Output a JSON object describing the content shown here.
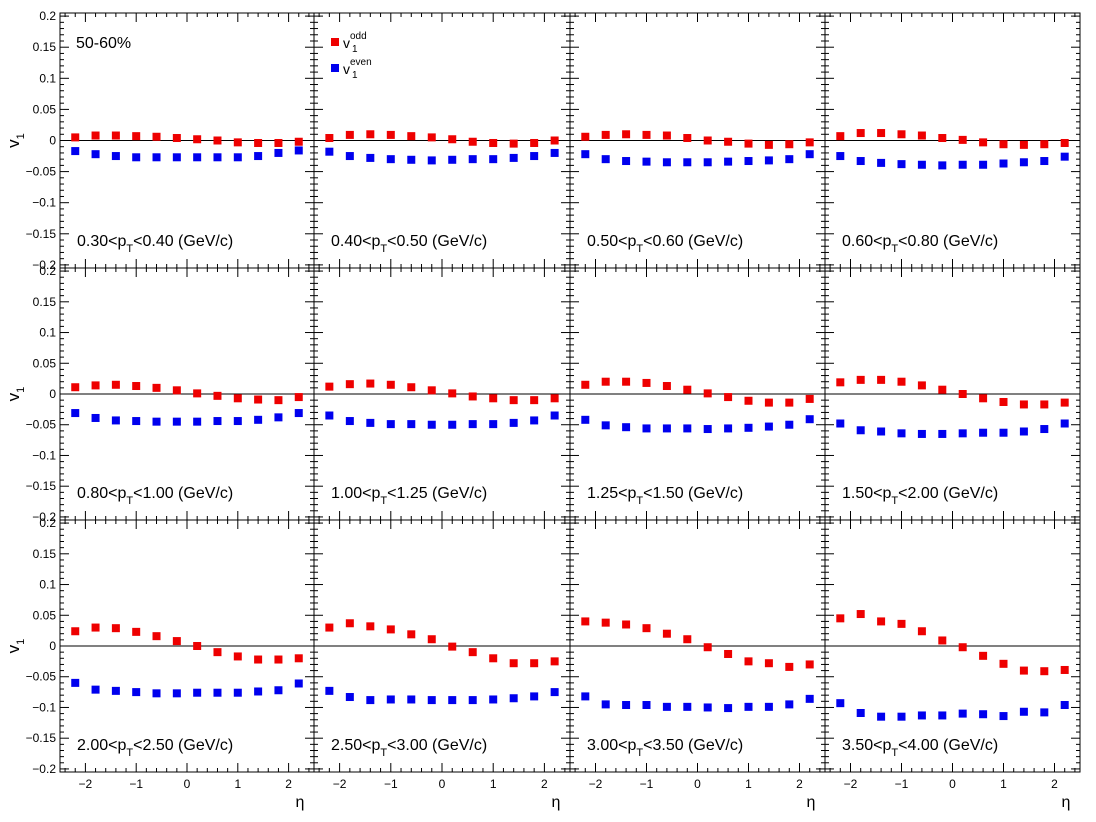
{
  "figure": {
    "centrality_label": "50-60%",
    "ylabel": "v",
    "ylabel_sub": "1",
    "xlabel": "η",
    "legend": [
      {
        "base": "v",
        "sub": "1",
        "sup": "odd",
        "color": "#ee0000"
      },
      {
        "base": "v",
        "sub": "1",
        "sup": "even",
        "color": "#0000ee"
      }
    ],
    "ytick_labels": [
      "0.2",
      "0.15",
      "0.1",
      "0.05",
      "0",
      "−0.05",
      "−0.1",
      "−0.15",
      "−0.2"
    ],
    "xtick_labels": [
      "−2",
      "−1",
      "0",
      "1",
      "2"
    ],
    "colors": {
      "odd": "#ee0000",
      "even": "#0000ee",
      "axis": "#000000"
    }
  },
  "chart_data": {
    "type": "scatter",
    "layout": "grid 3 rows x 4 columns",
    "xlabel": "η",
    "ylabel": "v1",
    "xlim": [
      -2.5,
      2.5
    ],
    "ylim": [
      -0.205,
      0.205
    ],
    "x": [
      -2.2,
      -1.8,
      -1.4,
      -1.0,
      -0.6,
      -0.2,
      0.2,
      0.6,
      1.0,
      1.4,
      1.8,
      2.2
    ],
    "series_names": [
      "v1 odd",
      "v1 even"
    ],
    "panels": [
      {
        "label": "0.30<pT<0.40 (GeV/c)",
        "p_lo": "0.30",
        "p_hi": "0.40",
        "odd": [
          0.005,
          0.008,
          0.008,
          0.007,
          0.006,
          0.004,
          0.002,
          0.0,
          -0.003,
          -0.004,
          -0.004,
          -0.002
        ],
        "even": [
          -0.017,
          -0.022,
          -0.025,
          -0.027,
          -0.027,
          -0.027,
          -0.027,
          -0.027,
          -0.027,
          -0.025,
          -0.02,
          -0.016
        ]
      },
      {
        "label": "0.40<pT<0.50 (GeV/c)",
        "p_lo": "0.40",
        "p_hi": "0.50",
        "odd": [
          0.004,
          0.009,
          0.01,
          0.009,
          0.007,
          0.005,
          0.002,
          -0.002,
          -0.004,
          -0.005,
          -0.004,
          0.0
        ],
        "even": [
          -0.018,
          -0.025,
          -0.028,
          -0.03,
          -0.031,
          -0.032,
          -0.031,
          -0.03,
          -0.03,
          -0.028,
          -0.025,
          -0.02
        ]
      },
      {
        "label": "0.50<pT<0.60 (GeV/c)",
        "p_lo": "0.50",
        "p_hi": "0.60",
        "odd": [
          0.006,
          0.009,
          0.01,
          0.009,
          0.008,
          0.004,
          0.0,
          -0.002,
          -0.005,
          -0.007,
          -0.006,
          -0.003
        ],
        "even": [
          -0.022,
          -0.03,
          -0.033,
          -0.034,
          -0.035,
          -0.035,
          -0.035,
          -0.034,
          -0.033,
          -0.032,
          -0.03,
          -0.022
        ]
      },
      {
        "label": "0.60<pT<0.80 (GeV/c)",
        "p_lo": "0.60",
        "p_hi": "0.80",
        "odd": [
          0.007,
          0.012,
          0.012,
          0.01,
          0.008,
          0.004,
          0.001,
          -0.003,
          -0.006,
          -0.007,
          -0.006,
          -0.004
        ],
        "even": [
          -0.025,
          -0.033,
          -0.036,
          -0.038,
          -0.039,
          -0.04,
          -0.039,
          -0.039,
          -0.037,
          -0.035,
          -0.033,
          -0.026
        ]
      },
      {
        "label": "0.80<pT<1.00 (GeV/c)",
        "p_lo": "0.80",
        "p_hi": "1.00",
        "odd": [
          0.011,
          0.014,
          0.015,
          0.013,
          0.01,
          0.006,
          0.001,
          -0.003,
          -0.007,
          -0.009,
          -0.01,
          -0.005
        ],
        "even": [
          -0.031,
          -0.039,
          -0.043,
          -0.044,
          -0.045,
          -0.045,
          -0.045,
          -0.044,
          -0.044,
          -0.042,
          -0.038,
          -0.031
        ]
      },
      {
        "label": "1.00<pT<1.25 (GeV/c)",
        "p_lo": "1.00",
        "p_hi": "1.25",
        "odd": [
          0.012,
          0.016,
          0.017,
          0.015,
          0.011,
          0.006,
          0.001,
          -0.004,
          -0.007,
          -0.01,
          -0.01,
          -0.007
        ],
        "even": [
          -0.035,
          -0.044,
          -0.047,
          -0.049,
          -0.049,
          -0.05,
          -0.05,
          -0.049,
          -0.049,
          -0.047,
          -0.043,
          -0.035
        ]
      },
      {
        "label": "1.25<pT<1.50 (GeV/c)",
        "p_lo": "1.25",
        "p_hi": "1.50",
        "odd": [
          0.015,
          0.02,
          0.02,
          0.018,
          0.013,
          0.007,
          0.001,
          -0.005,
          -0.011,
          -0.014,
          -0.014,
          -0.008
        ],
        "even": [
          -0.042,
          -0.051,
          -0.054,
          -0.056,
          -0.056,
          -0.056,
          -0.057,
          -0.056,
          -0.055,
          -0.053,
          -0.05,
          -0.041
        ]
      },
      {
        "label": "1.50<pT<2.00 (GeV/c)",
        "p_lo": "1.50",
        "p_hi": "2.00",
        "odd": [
          0.019,
          0.023,
          0.023,
          0.02,
          0.014,
          0.007,
          0.0,
          -0.007,
          -0.013,
          -0.017,
          -0.017,
          -0.014
        ],
        "even": [
          -0.048,
          -0.059,
          -0.061,
          -0.064,
          -0.065,
          -0.065,
          -0.064,
          -0.063,
          -0.063,
          -0.061,
          -0.057,
          -0.048
        ]
      },
      {
        "label": "2.00<pT<2.50 (GeV/c)",
        "p_lo": "2.00",
        "p_hi": "2.50",
        "odd": [
          0.024,
          0.03,
          0.029,
          0.023,
          0.016,
          0.008,
          0.0,
          -0.01,
          -0.017,
          -0.022,
          -0.022,
          -0.02
        ],
        "even": [
          -0.06,
          -0.071,
          -0.073,
          -0.075,
          -0.077,
          -0.077,
          -0.076,
          -0.076,
          -0.076,
          -0.074,
          -0.072,
          -0.061
        ]
      },
      {
        "label": "2.50<pT<3.00 (GeV/c)",
        "p_lo": "2.50",
        "p_hi": "3.00",
        "odd": [
          0.03,
          0.037,
          0.032,
          0.027,
          0.019,
          0.011,
          -0.001,
          -0.01,
          -0.02,
          -0.028,
          -0.028,
          -0.025
        ],
        "even": [
          -0.073,
          -0.083,
          -0.088,
          -0.087,
          -0.087,
          -0.088,
          -0.088,
          -0.088,
          -0.087,
          -0.085,
          -0.082,
          -0.075
        ]
      },
      {
        "label": "3.00<pT<3.50 (GeV/c)",
        "p_lo": "3.00",
        "p_hi": "3.50",
        "odd": [
          0.04,
          0.038,
          0.035,
          0.029,
          0.02,
          0.011,
          -0.002,
          -0.013,
          -0.025,
          -0.028,
          -0.034,
          -0.03
        ],
        "even": [
          -0.082,
          -0.095,
          -0.096,
          -0.096,
          -0.099,
          -0.099,
          -0.1,
          -0.101,
          -0.099,
          -0.099,
          -0.095,
          -0.086
        ]
      },
      {
        "label": "3.50<pT<4.00 (GeV/c)",
        "p_lo": "3.50",
        "p_hi": "4.00",
        "odd": [
          0.045,
          0.052,
          0.04,
          0.036,
          0.024,
          0.009,
          -0.002,
          -0.016,
          -0.029,
          -0.04,
          -0.041,
          -0.039
        ],
        "even": [
          -0.093,
          -0.109,
          -0.115,
          -0.115,
          -0.113,
          -0.113,
          -0.11,
          -0.111,
          -0.114,
          -0.107,
          -0.108,
          -0.096
        ]
      }
    ]
  }
}
